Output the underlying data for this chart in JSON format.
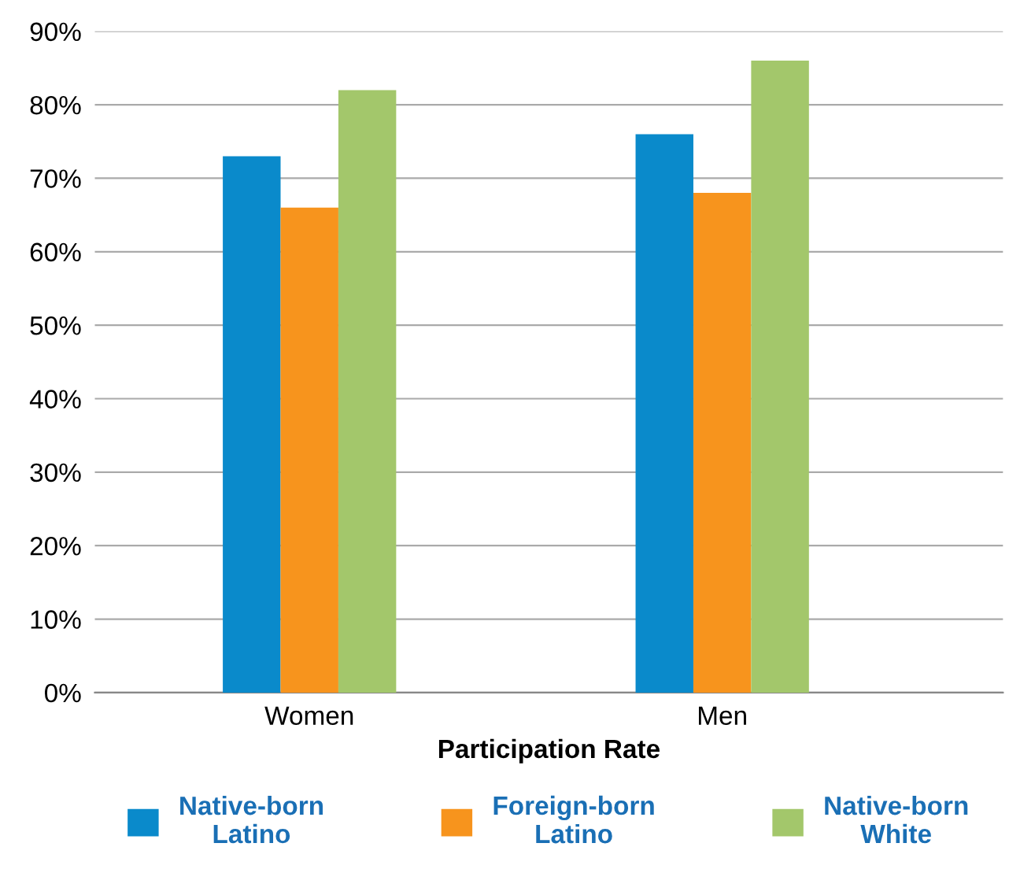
{
  "chart_data": {
    "type": "bar",
    "xlabel": "Participation Rate",
    "categories": [
      "Women",
      "Men"
    ],
    "series": [
      {
        "name": "Native-born\nLatino",
        "color": "#0a8acb",
        "values": [
          73,
          76
        ]
      },
      {
        "name": "Foreign-born\nLatino",
        "color": "#f7941d",
        "values": [
          66,
          68
        ]
      },
      {
        "name": "Native-born\nWhite",
        "color": "#a3c76b",
        "values": [
          82,
          86
        ]
      }
    ],
    "ylim": [
      0,
      90
    ],
    "yticks": [
      {
        "value": 0,
        "label": "0%"
      },
      {
        "value": 10,
        "label": "10%"
      },
      {
        "value": 20,
        "label": "20%"
      },
      {
        "value": 30,
        "label": "30%"
      },
      {
        "value": 40,
        "label": "40%"
      },
      {
        "value": 50,
        "label": "50%"
      },
      {
        "value": 60,
        "label": "60%"
      },
      {
        "value": 70,
        "label": "70%"
      },
      {
        "value": 80,
        "label": "80%"
      },
      {
        "value": 90,
        "label": "90%"
      }
    ],
    "grid": "y",
    "legend": "bottom"
  }
}
